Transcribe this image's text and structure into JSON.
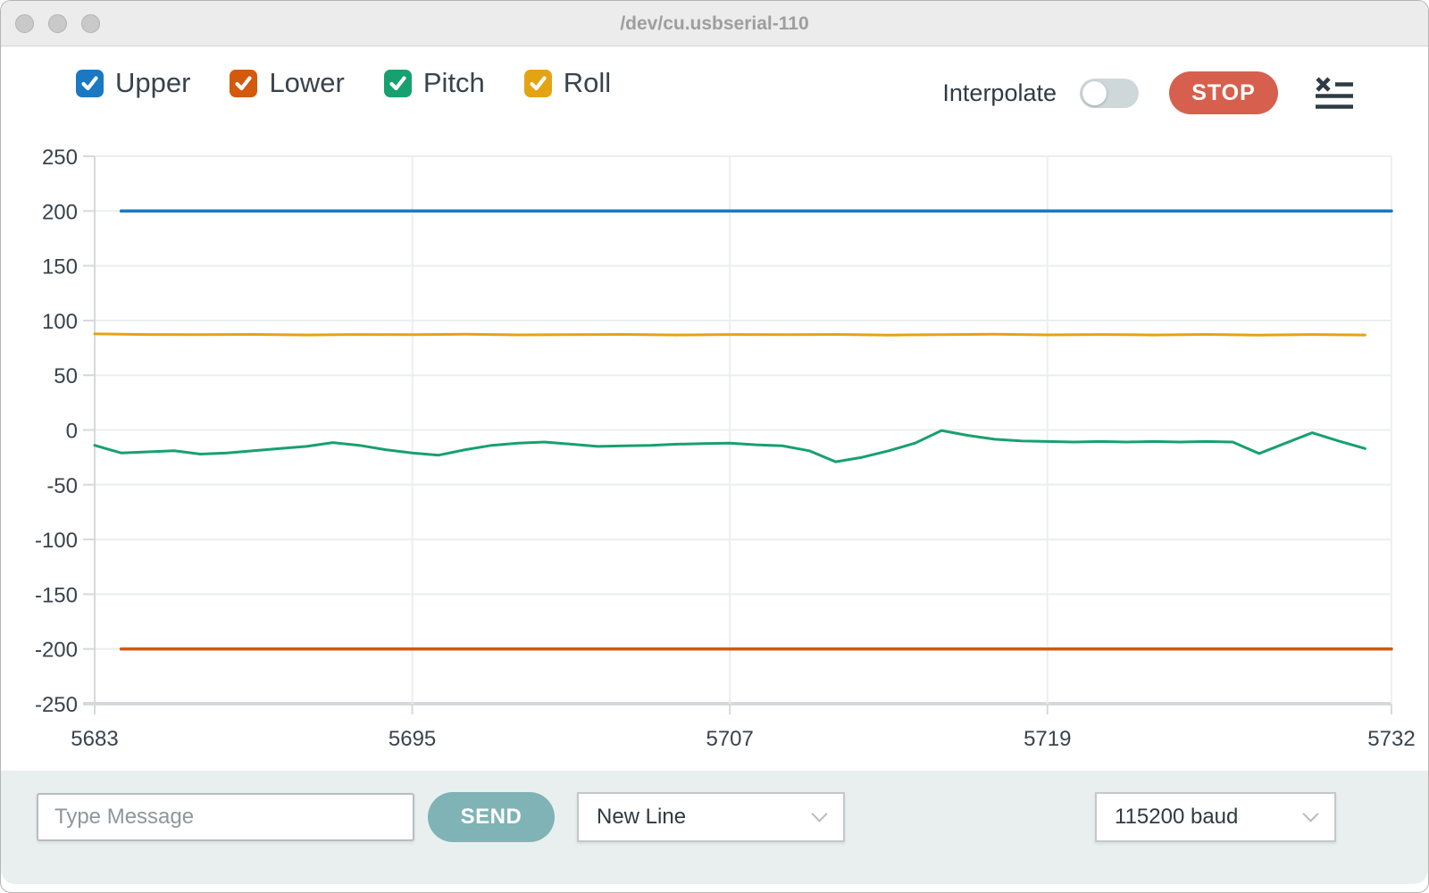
{
  "window": {
    "title": "/dev/cu.usbserial-110"
  },
  "toolbar": {
    "channels": [
      {
        "label": "Upper",
        "color": "#1a79c2",
        "checked": true
      },
      {
        "label": "Lower",
        "color": "#d3590c",
        "checked": true
      },
      {
        "label": "Pitch",
        "color": "#17a070",
        "checked": true
      },
      {
        "label": "Roll",
        "color": "#e3a414",
        "checked": true
      }
    ],
    "interpolate_label": "Interpolate",
    "interpolate_on": false,
    "stop_label": "STOP",
    "clear_icon": "clear-plot-icon"
  },
  "chart_data": {
    "type": "line",
    "title": "",
    "xlabel": "",
    "ylabel": "",
    "xlim": [
      5683,
      5732
    ],
    "ylim": [
      -250,
      250
    ],
    "x_ticks": [
      5683,
      5695,
      5707,
      5719,
      5732
    ],
    "y_ticks": [
      250,
      200,
      150,
      100,
      50,
      0,
      -50,
      -100,
      -150,
      -200,
      -250
    ],
    "grid": true,
    "legend_position": "top-checkbox-row",
    "colors": {
      "grid": "#ebeef0",
      "axis": "#d5d9db",
      "tick_label": "#39434c"
    },
    "series": [
      {
        "name": "Upper",
        "color": "#1a79c2",
        "width": 3.5,
        "x": [
          5684,
          5732
        ],
        "y": [
          200,
          200
        ]
      },
      {
        "name": "Lower",
        "color": "#d3590c",
        "width": 3.5,
        "x": [
          5684,
          5732
        ],
        "y": [
          -200,
          -200
        ]
      },
      {
        "name": "Roll",
        "color": "#e3a414",
        "width": 3,
        "x_start": 5683,
        "x_step": 2,
        "y": [
          87.8,
          87.2,
          87.0,
          87.3,
          86.8,
          87.2,
          87.0,
          87.4,
          86.9,
          87.1,
          87.3,
          86.8,
          87.2,
          87.0,
          87.3,
          86.7,
          87.1,
          87.4,
          86.9,
          87.2,
          86.8,
          87.3,
          86.6,
          87.2,
          86.8
        ]
      },
      {
        "name": "Pitch",
        "color": "#17a070",
        "width": 3,
        "x_start": 5683,
        "x_step": 1,
        "y": [
          -14,
          -21,
          -20,
          -19,
          -22,
          -21,
          -19,
          -17,
          -15,
          -11.5,
          -14,
          -18,
          -21,
          -23,
          -18,
          -14,
          -12,
          -11,
          -13,
          -15,
          -14.5,
          -14,
          -13,
          -12.5,
          -12,
          -13.5,
          -14.5,
          -19,
          -29,
          -25,
          -19,
          -12,
          -0.5,
          -5,
          -8.5,
          -10,
          -10.5,
          -11,
          -10.5,
          -11,
          -10.5,
          -11,
          -10.5,
          -11,
          -21.5,
          -12,
          -2.5,
          -10,
          -17
        ]
      }
    ]
  },
  "message_bar": {
    "input_placeholder": "Type Message",
    "input_value": "",
    "send_label": "SEND",
    "line_ending": "New Line",
    "baud_rate": "115200 baud"
  }
}
